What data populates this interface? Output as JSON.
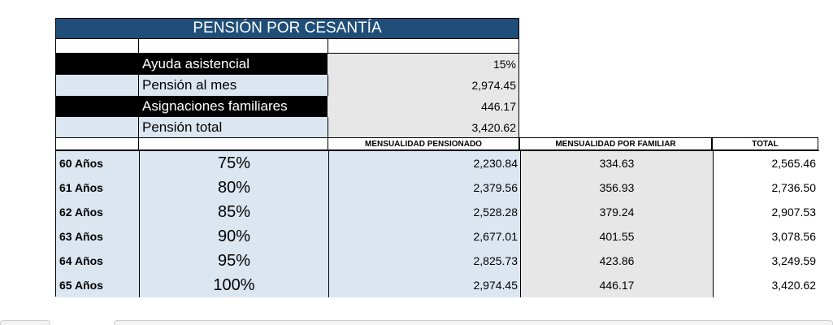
{
  "title": "PENSIÓN POR CESANTÍA",
  "summary": [
    {
      "label": "Ayuda asistencial",
      "value": "15%"
    },
    {
      "label": "Pensión al mes",
      "value": "2,974.45"
    },
    {
      "label": "Asignaciones familiares",
      "value": "446.17"
    },
    {
      "label": "Pensión total",
      "value": "3,420.62"
    }
  ],
  "headers": {
    "pensionado": "MENSUALIDAD PENSIONADO",
    "familiar": "MENSUALIDAD POR FAMILIAR",
    "total": "TOTAL"
  },
  "rows": [
    {
      "age": "60 Años",
      "pct": "75%",
      "pensionado": "2,230.84",
      "familiar": "334.63",
      "total": "2,565.46"
    },
    {
      "age": "61 Años",
      "pct": "80%",
      "pensionado": "2,379.56",
      "familiar": "356.93",
      "total": "2,736.50"
    },
    {
      "age": "62 Años",
      "pct": "85%",
      "pensionado": "2,528.28",
      "familiar": "379.24",
      "total": "2,907.53"
    },
    {
      "age": "63 Años",
      "pct": "90%",
      "pensionado": "2,677.01",
      "familiar": "401.55",
      "total": "3,078.56"
    },
    {
      "age": "64 Años",
      "pct": "95%",
      "pensionado": "2,825.73",
      "familiar": "423.86",
      "total": "3,249.59"
    },
    {
      "age": "65 Años",
      "pct": "100%",
      "pensionado": "2,974.45",
      "familiar": "446.17",
      "total": "3,420.62"
    }
  ],
  "colors": {
    "title_bg": "#1f4e79",
    "light_blue": "#dce6f1",
    "light_gray": "#e7e7e7",
    "black_label": "#000000"
  }
}
